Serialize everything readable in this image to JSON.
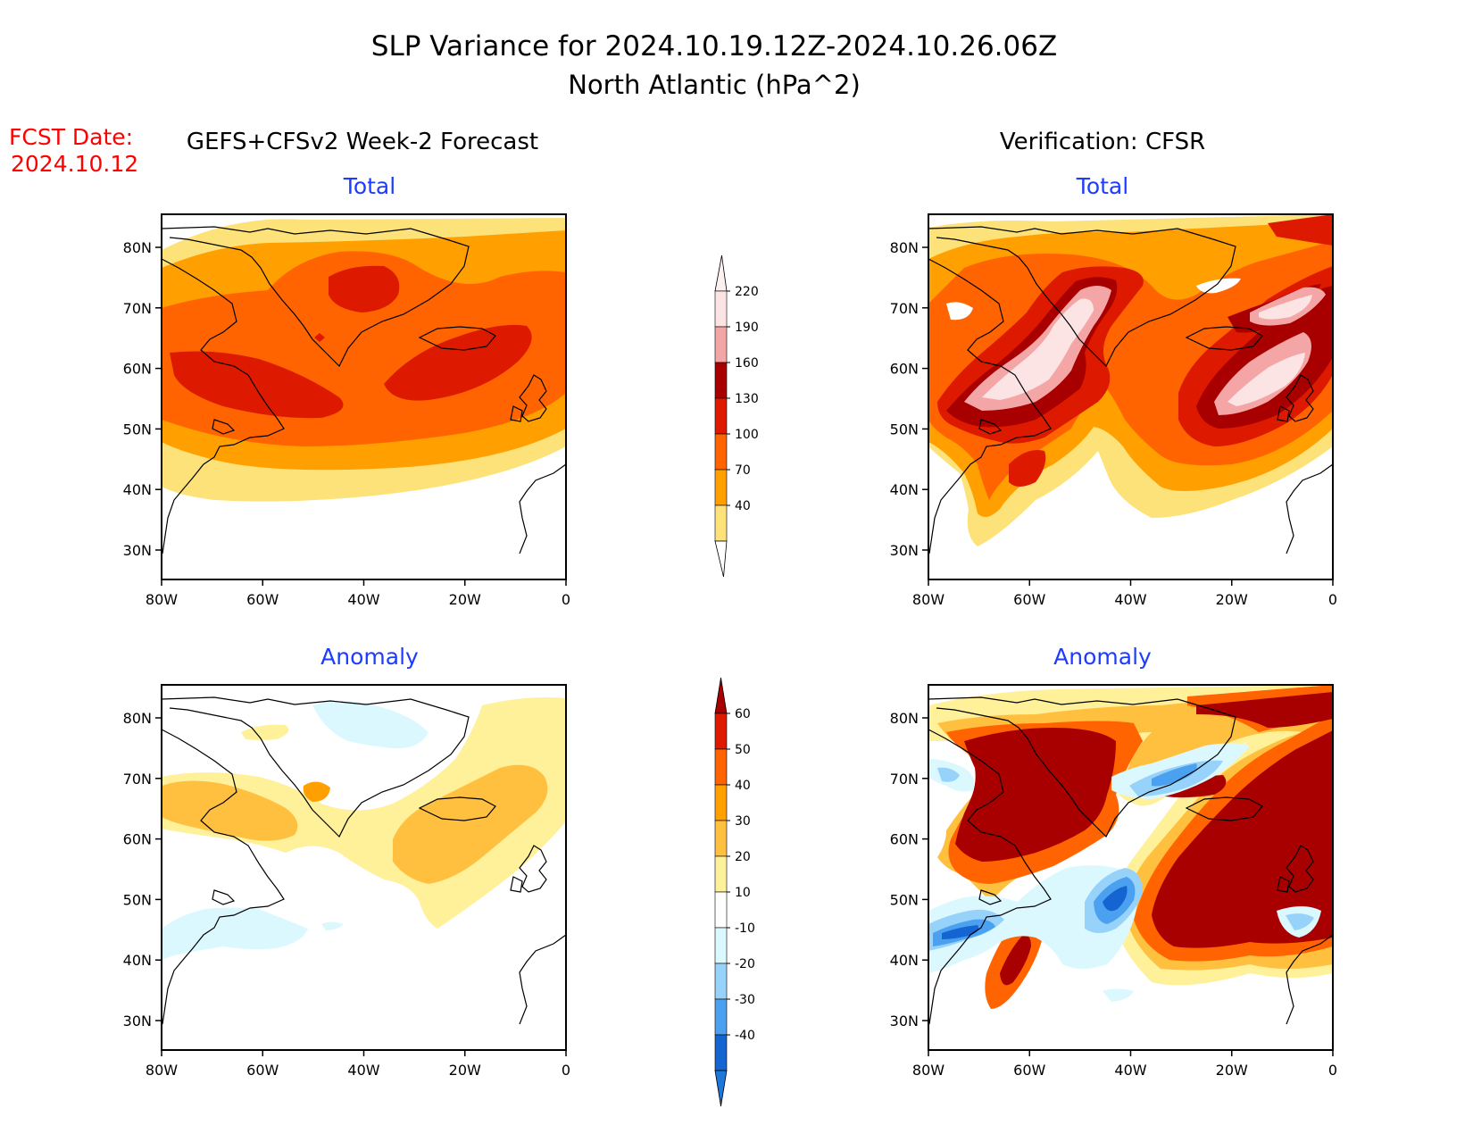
{
  "title": {
    "line1": "SLP Variance for 2024.10.19.12Z-2024.10.26.06Z",
    "line2": "North Atlantic (hPa^2)"
  },
  "fcst_date": {
    "label": "FCST Date:",
    "value": "2024.10.12"
  },
  "columns": {
    "left_title": "GEFS+CFSv2 Week-2 Forecast",
    "right_title": "Verification: CFSR"
  },
  "panels": [
    {
      "id": "fcst-total",
      "title": "Total"
    },
    {
      "id": "verif-total",
      "title": "Total"
    },
    {
      "id": "fcst-anomaly",
      "title": "Anomaly"
    },
    {
      "id": "verif-anomaly",
      "title": "Anomaly"
    }
  ],
  "axes": {
    "lon_ticks": [
      "80W",
      "60W",
      "40W",
      "20W",
      "0"
    ],
    "lat_ticks": [
      "80N",
      "70N",
      "60N",
      "50N",
      "40N",
      "30N"
    ]
  },
  "colorbars": {
    "total": {
      "labels": [
        "220",
        "190",
        "160",
        "130",
        "100",
        "70",
        "40"
      ],
      "colors": [
        "#fde4e4",
        "#f4a6a6",
        "#a80000",
        "#dd1a00",
        "#ff6400",
        "#ffa000",
        "#fde27a"
      ]
    },
    "anomaly": {
      "labels": [
        "60",
        "50",
        "40",
        "30",
        "20",
        "10",
        "-10",
        "-20",
        "-30",
        "-40"
      ],
      "colors": [
        "#a80000",
        "#dd1a00",
        "#ff6400",
        "#ffa000",
        "#ffc040",
        "#fff09a",
        "#ffffff",
        "#dcf8ff",
        "#96d2fa",
        "#4ba0f0",
        "#1464d2",
        "#1e78dc"
      ]
    }
  },
  "colors": {
    "title_red": "#ff0000",
    "subtitle_blue": "#1e3cff"
  }
}
